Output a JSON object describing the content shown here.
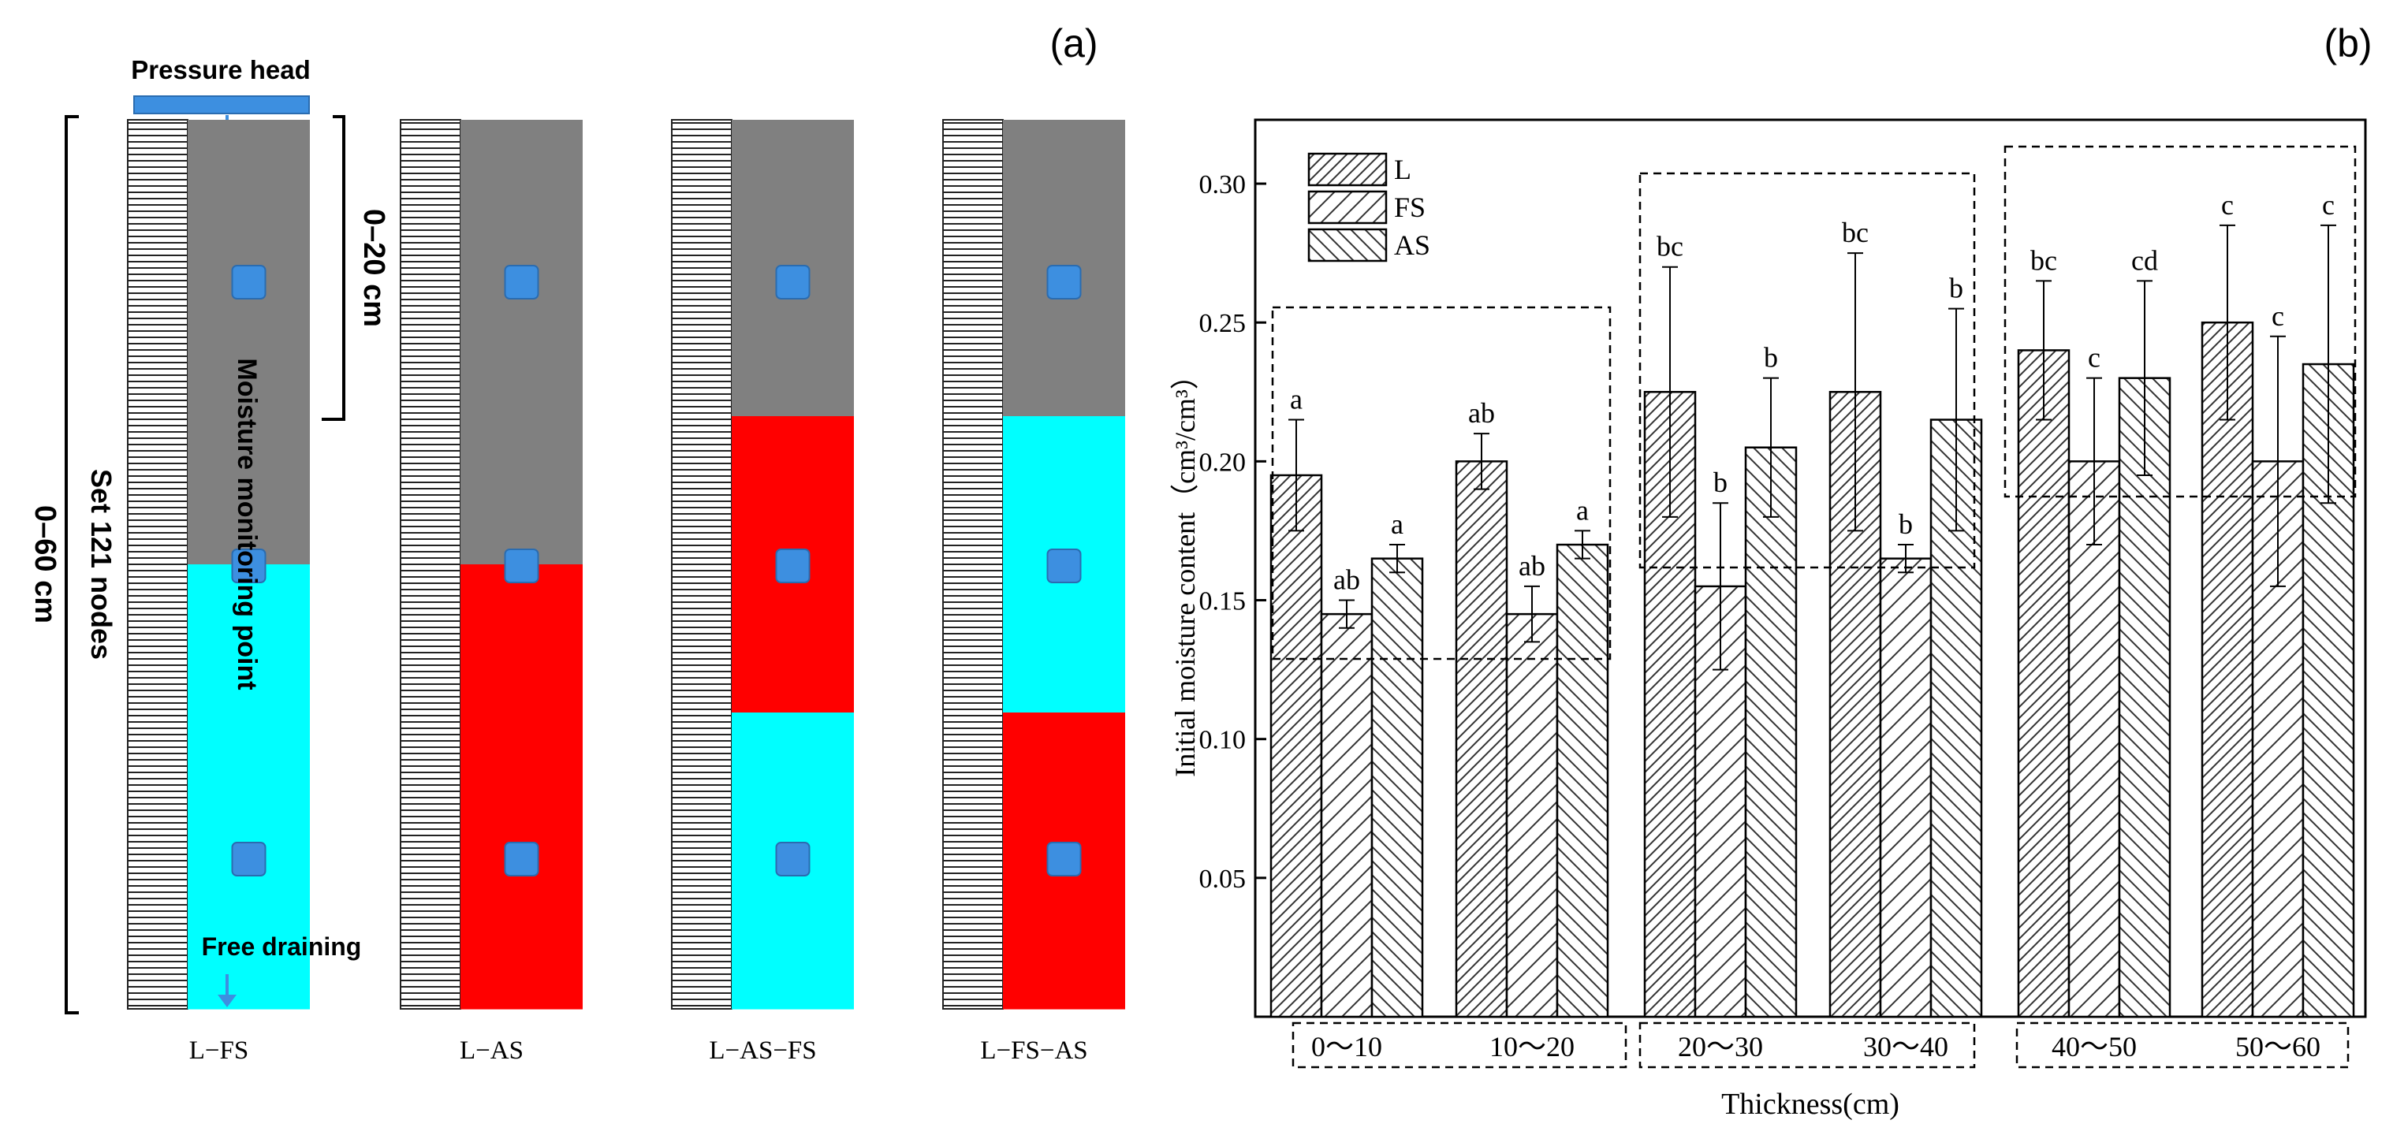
{
  "panel_a": {
    "label": "(a)",
    "pressure_head": "Pressure head",
    "free_draining": "Free draining",
    "depth_top": "0–20 cm",
    "depth_total": "0–60 cm",
    "nodes_label": "Set 121 nodes",
    "monitoring_label": "Moisture monitoring point",
    "columns": [
      {
        "name": "L−FS",
        "layers": [
          "gray",
          "gray",
          "gray",
          "cyan",
          "cyan",
          "cyan"
        ]
      },
      {
        "name": "L−AS",
        "layers": [
          "gray",
          "gray",
          "gray",
          "red",
          "red",
          "red"
        ]
      },
      {
        "name": "L−AS−FS",
        "layers": [
          "gray",
          "gray",
          "red",
          "red",
          "cyan",
          "cyan"
        ]
      },
      {
        "name": "L−FS−AS",
        "layers": [
          "gray",
          "gray",
          "cyan",
          "cyan",
          "red",
          "red"
        ]
      }
    ],
    "colors": {
      "gray": "#808080",
      "cyan": "#00ffff",
      "red": "#ff0000",
      "point": "#3d8fe0",
      "head": "#3d8fe0"
    }
  },
  "chart_data": {
    "type": "bar",
    "panel_label": "(b)",
    "ylabel": "Initial moisture content（cm³/cm³）",
    "xlabel": "Thickness(cm)",
    "categories": [
      "0～10",
      "10～20",
      "20～30",
      "30～40",
      "40～50",
      "50～60"
    ],
    "ylim": [
      0,
      0.3
    ],
    "yticks": [
      "0.05",
      "0.10",
      "0.15",
      "0.20",
      "0.25",
      "0.30"
    ],
    "legend": {
      "placement": "top-left",
      "entries": [
        "L",
        "FS",
        "AS"
      ]
    },
    "grid": false,
    "series": [
      {
        "name": "L",
        "values": [
          0.195,
          0.2,
          0.225,
          0.225,
          0.24,
          0.25
        ],
        "errors": [
          0.02,
          0.01,
          0.045,
          0.05,
          0.025,
          0.035
        ],
        "letters": [
          "a",
          "ab",
          "bc",
          "bc",
          "bc",
          "c"
        ]
      },
      {
        "name": "FS",
        "values": [
          0.145,
          0.145,
          0.155,
          0.165,
          0.2,
          0.2
        ],
        "errors": [
          0.005,
          0.01,
          0.03,
          0.005,
          0.03,
          0.045
        ],
        "letters": [
          "ab",
          "ab",
          "b",
          "b",
          "c",
          "c"
        ]
      },
      {
        "name": "AS",
        "values": [
          0.165,
          0.17,
          0.205,
          0.215,
          0.23,
          0.235
        ],
        "errors": [
          0.005,
          0.005,
          0.025,
          0.04,
          0.035,
          0.05
        ],
        "letters": [
          "a",
          "a",
          "b",
          "b",
          "cd",
          "c"
        ]
      }
    ]
  }
}
